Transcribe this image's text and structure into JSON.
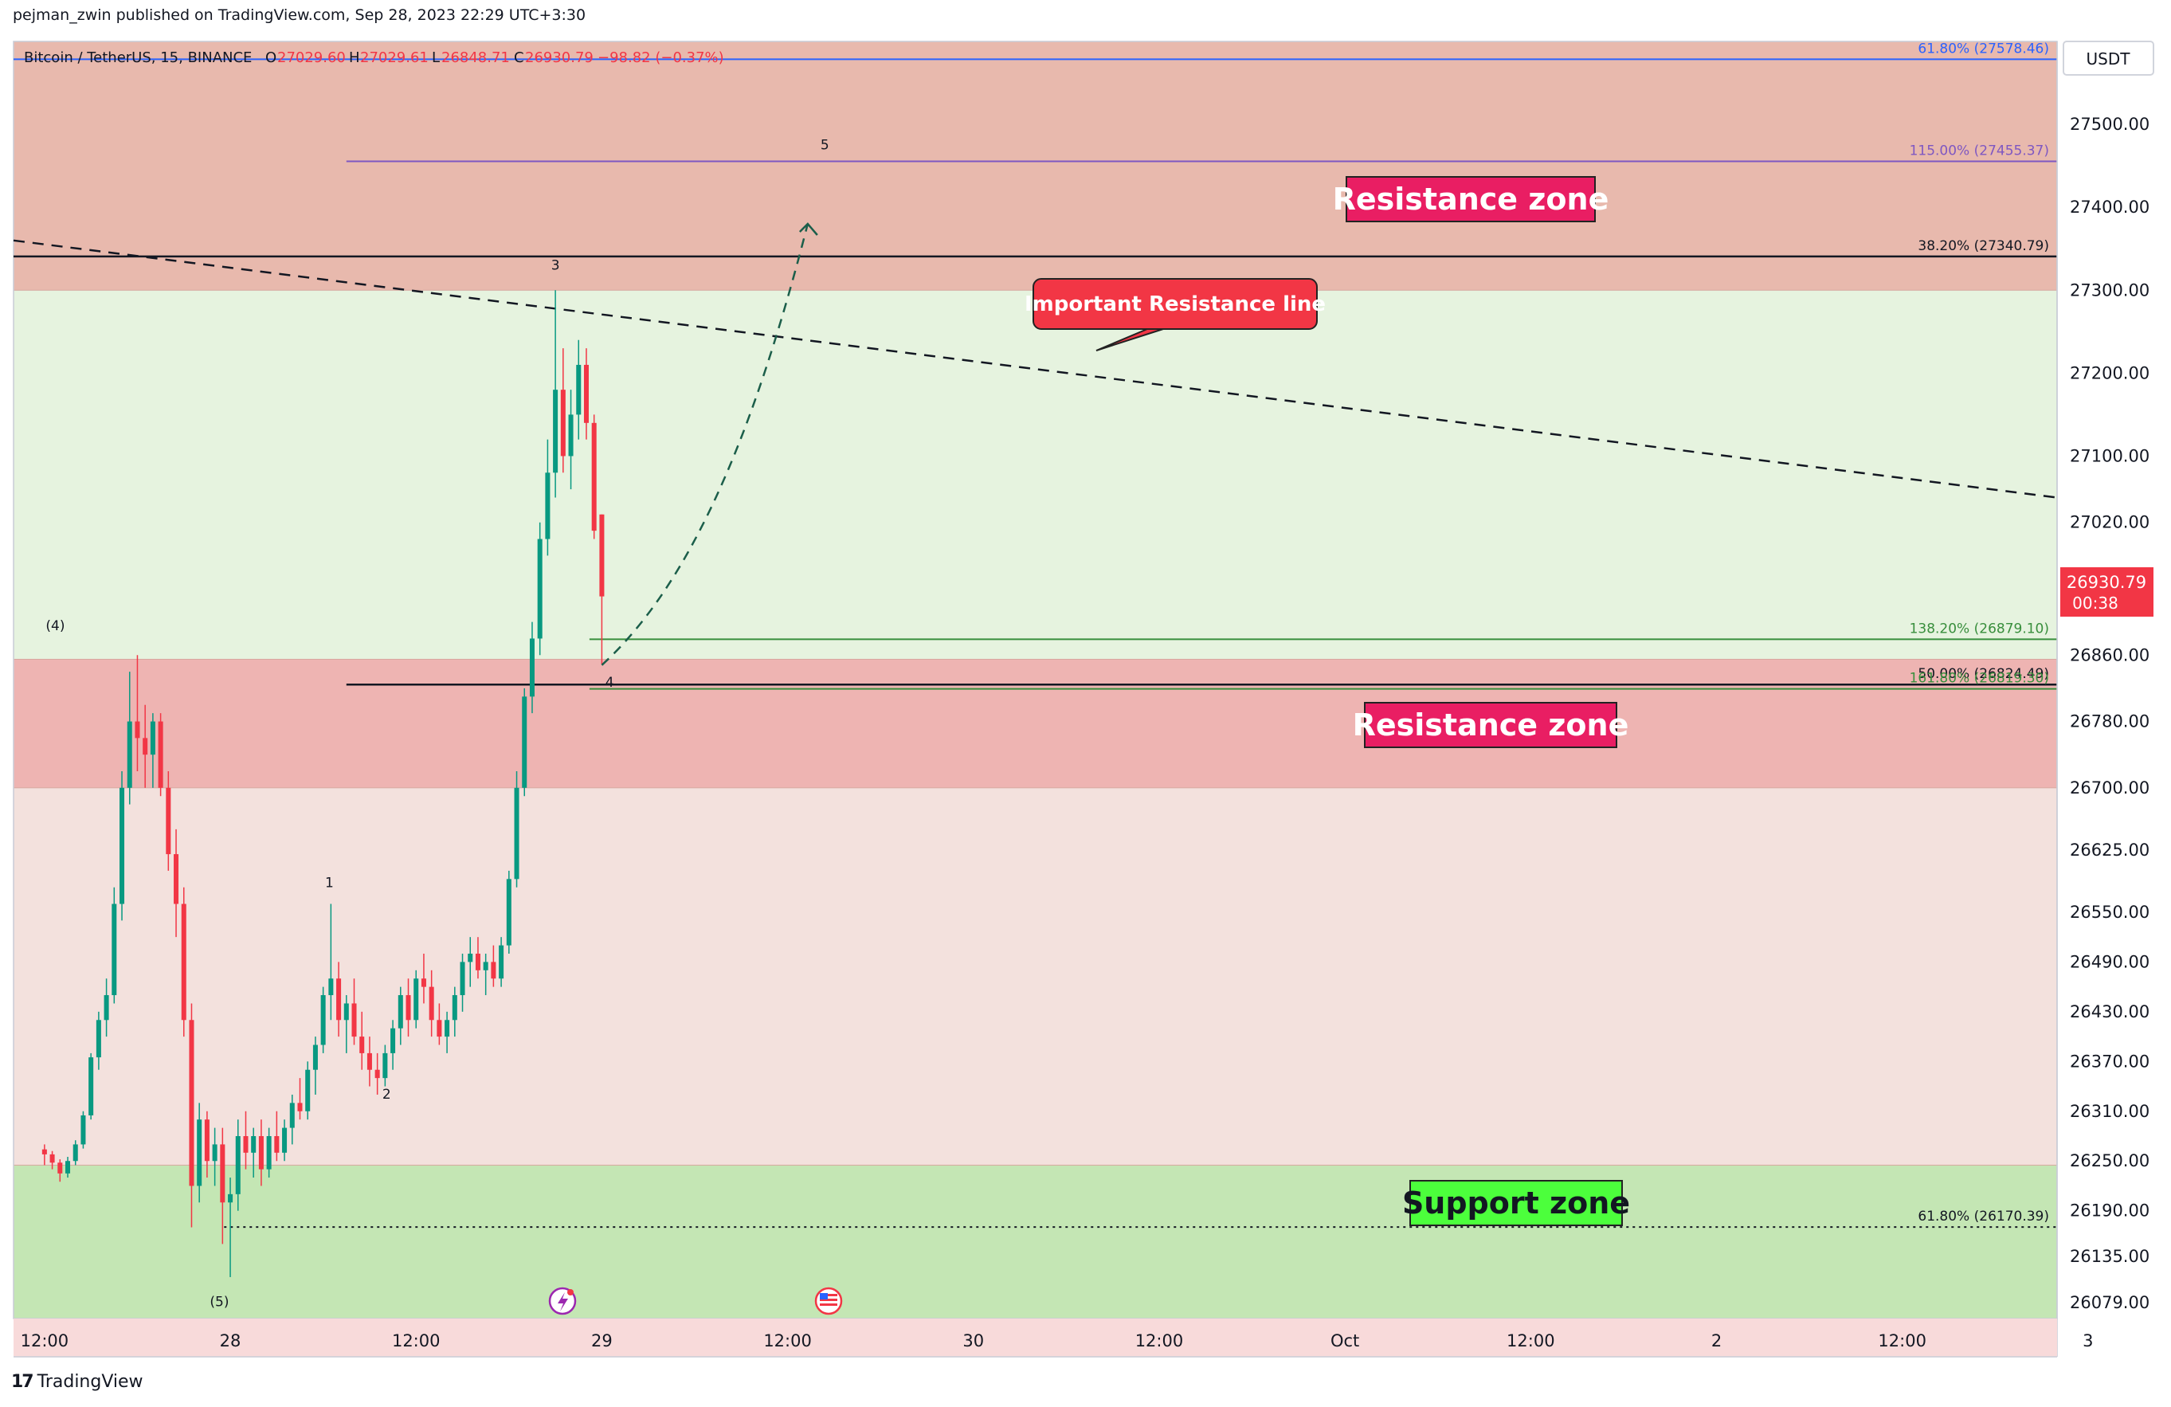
{
  "header": {
    "publisher": "pejman_zwin published on TradingView.com, Sep 28, 2023 22:29 UTC+3:30"
  },
  "footer": {
    "logo_text": "TradingView"
  },
  "legend": {
    "symbol": "Bitcoin / TetherUS, 15, BINANCE",
    "o_label": "O",
    "o_value": "27029.60",
    "h_label": "H",
    "h_value": "27029.61",
    "l_label": "L",
    "l_value": "26848.71",
    "c_label": "C",
    "c_value": "26930.79",
    "change": "−98.82 (−0.37%)"
  },
  "price_axis": {
    "currency": "USDT",
    "current_price": "26930.79",
    "countdown": "00:38",
    "current_color": "#f23645"
  },
  "colors": {
    "up": "#089981",
    "down": "#f23645",
    "resistance_fill": "#e8b9ad",
    "resistance_fill_2": "#eeb4b2",
    "support_fill": "#c4e6b4",
    "label_bg": "#e91e63",
    "support_label_bg": "#4cff3c"
  },
  "annotations": {
    "resistance_zone_upper": "Resistance zone",
    "resistance_zone_lower": "Resistance zone",
    "support_zone": "Support zone",
    "important_line": "Important Resistance line"
  },
  "fib_labels": [
    {
      "text": "61.80% (27578.46)",
      "price": 27578.46,
      "color": "#2962ff"
    },
    {
      "text": "115.00% (27455.37)",
      "price": 27455.37,
      "color": "#7e57c2"
    },
    {
      "text": "38.20% (27340.79)",
      "price": 27340.79,
      "color": "#131722"
    },
    {
      "text": "138.20% (26879.10)",
      "price": 26879.1,
      "color": "#388e3c"
    },
    {
      "text": "50.00% (26824.49)",
      "price": 26824.49,
      "color": "#131722"
    },
    {
      "text": "161.80% (26819.30)",
      "price": 26819.3,
      "color": "#388e3c"
    },
    {
      "text": "61.80% (26170.39)",
      "price": 26170.39,
      "color": "#131722"
    }
  ],
  "wave_labels": [
    {
      "text": "(4)",
      "x": 0.7,
      "price": 26890
    },
    {
      "text": "(5)",
      "x": 11.3,
      "price": 26075
    },
    {
      "text": "1",
      "x": 18.4,
      "price": 26580
    },
    {
      "text": "2",
      "x": 22.1,
      "price": 26325
    },
    {
      "text": "3",
      "x": 33.0,
      "price": 27325
    },
    {
      "text": "4",
      "x": 36.5,
      "price": 26822
    },
    {
      "text": "5",
      "x": 50.4,
      "price": 27470
    }
  ],
  "chart_data": {
    "type": "candlestick",
    "title": "Bitcoin / TetherUS, 15, BINANCE",
    "x_unit": "hours from Sep 27 12:00 (UTC+3:30)",
    "xlim": [
      -2,
      130
    ],
    "ylim": [
      26060,
      27600
    ],
    "x_ticks": [
      {
        "x": 0,
        "label": "12:00"
      },
      {
        "x": 12,
        "label": "28"
      },
      {
        "x": 24,
        "label": "12:00"
      },
      {
        "x": 36,
        "label": "29"
      },
      {
        "x": 48,
        "label": "12:00"
      },
      {
        "x": 60,
        "label": "30"
      },
      {
        "x": 72,
        "label": "12:00"
      },
      {
        "x": 84,
        "label": "Oct"
      },
      {
        "x": 96,
        "label": "12:00"
      },
      {
        "x": 108,
        "label": "2"
      },
      {
        "x": 120,
        "label": "12:00"
      },
      {
        "x": 132,
        "label": "3"
      }
    ],
    "y_ticks": [
      27500,
      27400,
      27300,
      27200,
      27100,
      27020,
      26860,
      26780,
      26700,
      26625,
      26550,
      26490,
      26430,
      26370,
      26310,
      26250,
      26190,
      26135,
      26079
    ],
    "zones": [
      {
        "name": "upper resistance",
        "from": 27300,
        "to": 27600
      },
      {
        "name": "lower resistance",
        "from": 26700,
        "to": 26855
      },
      {
        "name": "support",
        "from": 26060,
        "to": 26245
      }
    ],
    "trendline": {
      "points": [
        [
          -2,
          27360
        ],
        [
          130,
          27050
        ]
      ],
      "style": "dashed"
    },
    "horizontal_lines": [
      {
        "price": 27578.46,
        "from_x": -2
      },
      {
        "price": 27455.37,
        "from_x": 19.5
      },
      {
        "price": 27340.79,
        "from_x": -2
      },
      {
        "price": 26879.1,
        "from_x": 35.2
      },
      {
        "price": 26824.49,
        "from_x": 19.5
      },
      {
        "price": 26819.3,
        "from_x": 35.2
      },
      {
        "price": 26170.39,
        "from_x": 11.6,
        "dotted": true
      }
    ],
    "projection": {
      "points": [
        [
          36.0,
          26848
        ],
        [
          42,
          26950
        ],
        [
          46,
          27140
        ],
        [
          49.3,
          27380
        ],
        [
          50.2,
          27405
        ]
      ],
      "style": "dashed"
    },
    "candles": [
      [
        0,
        26264,
        26270,
        26245,
        26258
      ],
      [
        0.5,
        26258,
        26262,
        26240,
        26248
      ],
      [
        1,
        26248,
        26252,
        26225,
        26235
      ],
      [
        1.5,
        26235,
        26255,
        26230,
        26250
      ],
      [
        2,
        26250,
        26275,
        26245,
        26270
      ],
      [
        2.5,
        26270,
        26310,
        26265,
        26305
      ],
      [
        3,
        26305,
        26380,
        26300,
        26375
      ],
      [
        3.5,
        26375,
        26430,
        26360,
        26420
      ],
      [
        4,
        26420,
        26470,
        26400,
        26450
      ],
      [
        4.5,
        26450,
        26580,
        26440,
        26560
      ],
      [
        5,
        26560,
        26720,
        26540,
        26700
      ],
      [
        5.5,
        26700,
        26840,
        26680,
        26780
      ],
      [
        6,
        26780,
        26860,
        26720,
        26760
      ],
      [
        6.5,
        26760,
        26800,
        26700,
        26740
      ],
      [
        7,
        26740,
        26790,
        26700,
        26780
      ],
      [
        7.5,
        26780,
        26790,
        26690,
        26700
      ],
      [
        8,
        26700,
        26720,
        26600,
        26620
      ],
      [
        8.5,
        26620,
        26650,
        26520,
        26560
      ],
      [
        9,
        26560,
        26580,
        26400,
        26420
      ],
      [
        9.5,
        26420,
        26440,
        26170,
        26220
      ],
      [
        10,
        26220,
        26320,
        26200,
        26300
      ],
      [
        10.5,
        26300,
        26310,
        26230,
        26250
      ],
      [
        11,
        26250,
        26290,
        26220,
        26270
      ],
      [
        11.5,
        26270,
        26290,
        26150,
        26200
      ],
      [
        12,
        26200,
        26230,
        26110,
        26210
      ],
      [
        12.5,
        26210,
        26300,
        26190,
        26280
      ],
      [
        13,
        26280,
        26310,
        26240,
        26260
      ],
      [
        13.5,
        26260,
        26290,
        26230,
        26280
      ],
      [
        14,
        26280,
        26300,
        26220,
        26240
      ],
      [
        14.5,
        26240,
        26290,
        26230,
        26280
      ],
      [
        15,
        26280,
        26310,
        26250,
        26260
      ],
      [
        15.5,
        26260,
        26300,
        26250,
        26290
      ],
      [
        16,
        26290,
        26330,
        26270,
        26320
      ],
      [
        16.5,
        26320,
        26350,
        26300,
        26310
      ],
      [
        17,
        26310,
        26370,
        26300,
        26360
      ],
      [
        17.5,
        26360,
        26400,
        26330,
        26390
      ],
      [
        18,
        26390,
        26460,
        26380,
        26450
      ],
      [
        18.5,
        26450,
        26560,
        26420,
        26470
      ],
      [
        19,
        26470,
        26490,
        26400,
        26420
      ],
      [
        19.5,
        26420,
        26450,
        26380,
        26440
      ],
      [
        20,
        26440,
        26470,
        26390,
        26400
      ],
      [
        20.5,
        26400,
        26430,
        26360,
        26380
      ],
      [
        21,
        26380,
        26400,
        26340,
        26360
      ],
      [
        21.5,
        26360,
        26380,
        26330,
        26350
      ],
      [
        22,
        26350,
        26390,
        26340,
        26380
      ],
      [
        22.5,
        26380,
        26420,
        26360,
        26410
      ],
      [
        23,
        26410,
        26460,
        26390,
        26450
      ],
      [
        23.5,
        26450,
        26470,
        26400,
        26420
      ],
      [
        24,
        26420,
        26480,
        26410,
        26470
      ],
      [
        24.5,
        26470,
        26500,
        26440,
        26460
      ],
      [
        25,
        26460,
        26480,
        26400,
        26420
      ],
      [
        25.5,
        26420,
        26440,
        26390,
        26400
      ],
      [
        26,
        26400,
        26430,
        26380,
        26420
      ],
      [
        26.5,
        26420,
        26460,
        26400,
        26450
      ],
      [
        27,
        26450,
        26500,
        26430,
        26490
      ],
      [
        27.5,
        26490,
        26520,
        26460,
        26500
      ],
      [
        28,
        26500,
        26520,
        26470,
        26480
      ],
      [
        28.5,
        26480,
        26500,
        26450,
        26490
      ],
      [
        29,
        26490,
        26510,
        26460,
        26470
      ],
      [
        29.5,
        26470,
        26520,
        26460,
        26510
      ],
      [
        30,
        26510,
        26600,
        26500,
        26590
      ],
      [
        30.5,
        26590,
        26720,
        26580,
        26700
      ],
      [
        31,
        26700,
        26820,
        26690,
        26810
      ],
      [
        31.5,
        26810,
        26900,
        26790,
        26880
      ],
      [
        32,
        26880,
        27020,
        26860,
        27000
      ],
      [
        32.5,
        27000,
        27120,
        26980,
        27080
      ],
      [
        33,
        27080,
        27300,
        27050,
        27180
      ],
      [
        33.5,
        27180,
        27230,
        27080,
        27100
      ],
      [
        34,
        27100,
        27180,
        27060,
        27150
      ],
      [
        34.5,
        27150,
        27240,
        27120,
        27210
      ],
      [
        35,
        27210,
        27230,
        27120,
        27140
      ],
      [
        35.5,
        27140,
        27150,
        27000,
        27010
      ],
      [
        36,
        27029.6,
        27029.61,
        26848.71,
        26930.79
      ]
    ]
  }
}
